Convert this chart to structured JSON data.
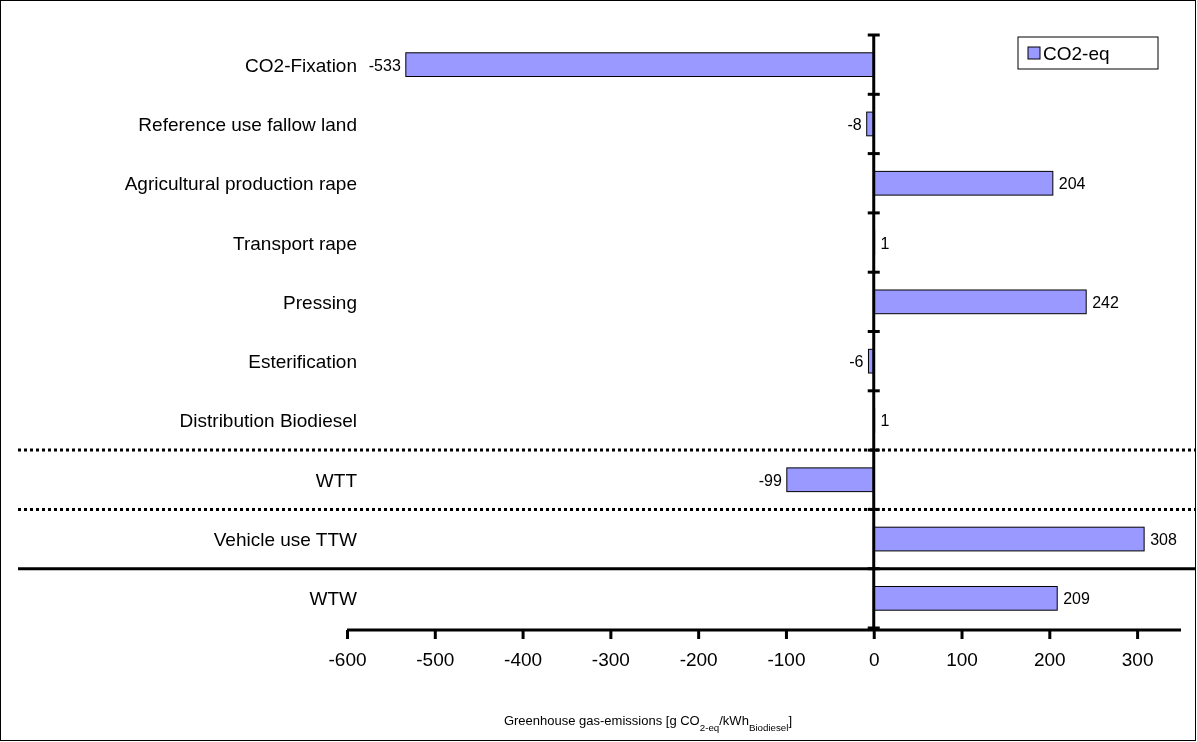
{
  "chart_data": {
    "type": "bar",
    "orientation": "horizontal",
    "categories": [
      "CO2-Fixation",
      "Reference use fallow land",
      "Agricultural production rape",
      "Transport rape",
      "Pressing",
      "Esterification",
      "Distribution Biodiesel",
      "WTT",
      "Vehicle use TTW",
      "WTW"
    ],
    "series": [
      {
        "name": "CO2-eq",
        "color": "#9999ff",
        "values": [
          -533,
          -8,
          204,
          1,
          242,
          -6,
          1,
          -99,
          308,
          209
        ]
      }
    ],
    "xlim": [
      -600,
      350
    ],
    "xticks": [
      -600,
      -500,
      -400,
      -300,
      -200,
      -100,
      0,
      100,
      200,
      300
    ],
    "xlabel": "Greenhouse gas-emissions [g CO$_{2-eq}$/kWh$_{Biodiesel}$]",
    "data_labels": true,
    "legend": "top right"
  }
}
